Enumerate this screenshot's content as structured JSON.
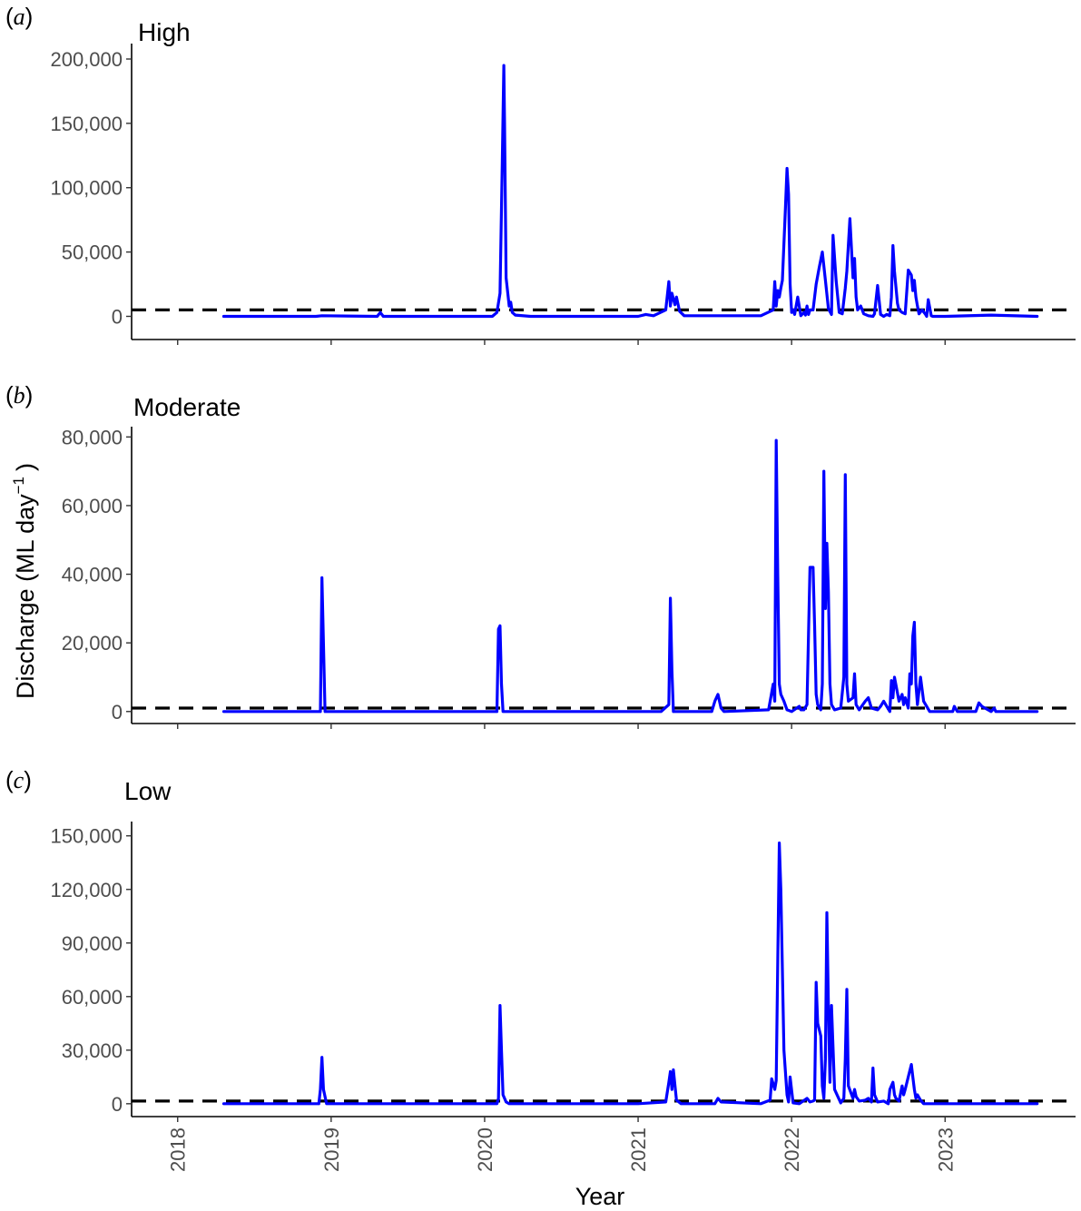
{
  "colors": {
    "series": "#0000ff",
    "threshold": "#000000"
  },
  "ylabel_main": "Discharge (ML day",
  "ylabel_sup": "−1",
  "ylabel_close": ")",
  "xlabel": "Year",
  "x_ticks": [
    "2018",
    "2019",
    "2020",
    "2021",
    "2022",
    "2023"
  ],
  "chart_data": [
    {
      "type": "line",
      "panel_letter": "a",
      "title": "High",
      "xlabel": "",
      "ylabel": "Discharge (ML day−1)",
      "xlim": [
        2017.7,
        2023.85
      ],
      "ylim": [
        -18000,
        212000
      ],
      "y_ticks": [
        0,
        50000,
        100000,
        150000,
        200000
      ],
      "y_tick_labels": [
        "0",
        "50,000",
        "100,000",
        "150,000",
        "200,000"
      ],
      "threshold": 5000,
      "x": [
        2018.3,
        2018.9,
        2018.94,
        2019.3,
        2019.32,
        2019.34,
        2019.9,
        2020.05,
        2020.08,
        2020.1,
        2020.115,
        2020.125,
        2020.13,
        2020.14,
        2020.16,
        2020.17,
        2020.18,
        2020.2,
        2020.3,
        2021.0,
        2021.05,
        2021.1,
        2021.18,
        2021.2,
        2021.21,
        2021.22,
        2021.24,
        2021.25,
        2021.27,
        2021.3,
        2021.8,
        2021.88,
        2021.89,
        2021.9,
        2021.91,
        2021.92,
        2021.93,
        2021.94,
        2021.96,
        2021.97,
        2021.98,
        2021.99,
        2022.0,
        2022.01,
        2022.02,
        2022.04,
        2022.06,
        2022.08,
        2022.09,
        2022.1,
        2022.11,
        2022.12,
        2022.14,
        2022.16,
        2022.18,
        2022.2,
        2022.22,
        2022.24,
        2022.26,
        2022.27,
        2022.29,
        2022.31,
        2022.33,
        2022.35,
        2022.36,
        2022.38,
        2022.4,
        2022.41,
        2022.42,
        2022.43,
        2022.45,
        2022.47,
        2022.5,
        2022.53,
        2022.54,
        2022.56,
        2022.58,
        2022.6,
        2022.62,
        2022.64,
        2022.65,
        2022.66,
        2022.67,
        2022.69,
        2022.7,
        2022.72,
        2022.74,
        2022.76,
        2022.78,
        2022.79,
        2022.8,
        2022.81,
        2022.82,
        2022.83,
        2022.85,
        2022.87,
        2022.88,
        2022.89,
        2022.91,
        2022.92,
        2023.0,
        2023.3,
        2023.6
      ],
      "values": [
        0,
        0,
        500,
        0,
        3000,
        0,
        0,
        0,
        3000,
        18000,
        120000,
        195000,
        150000,
        30000,
        8000,
        11000,
        3000,
        1000,
        0,
        0,
        1500,
        500,
        5000,
        27000,
        8000,
        18000,
        9000,
        15000,
        4000,
        500,
        500,
        5000,
        27000,
        8000,
        20000,
        15000,
        22000,
        28000,
        85000,
        115000,
        95000,
        25000,
        3000,
        5000,
        1500,
        15000,
        500,
        3000,
        1000,
        8000,
        1500,
        5000,
        5000,
        25000,
        38000,
        50000,
        28000,
        6000,
        1500,
        63000,
        28000,
        3000,
        2000,
        22000,
        35000,
        76000,
        30000,
        45000,
        15000,
        5000,
        8000,
        2000,
        500,
        0,
        2000,
        24000,
        1500,
        0,
        1500,
        500,
        15000,
        55000,
        35000,
        10000,
        5000,
        3000,
        2000,
        36000,
        32000,
        20000,
        28000,
        15000,
        8000,
        2000,
        5000,
        2000,
        0,
        13000,
        500,
        0,
        0,
        1000,
        0
      ]
    },
    {
      "type": "line",
      "panel_letter": "b",
      "title": "Moderate",
      "xlabel": "",
      "ylabel": "Discharge (ML day−1)",
      "xlim": [
        2017.7,
        2023.85
      ],
      "ylim": [
        -3500,
        83000
      ],
      "y_ticks": [
        0,
        20000,
        40000,
        60000,
        80000
      ],
      "y_tick_labels": [
        "0",
        "20,000",
        "40,000",
        "60,000",
        "80,000"
      ],
      "threshold": 1000,
      "x": [
        2018.3,
        2018.93,
        2018.94,
        2018.96,
        2018.97,
        2018.99,
        2019.0,
        2020.0,
        2020.08,
        2020.09,
        2020.1,
        2020.11,
        2020.12,
        2020.15,
        2021.0,
        2021.15,
        2021.2,
        2021.21,
        2021.22,
        2021.23,
        2021.25,
        2021.48,
        2021.5,
        2021.52,
        2021.54,
        2021.56,
        2021.85,
        2021.88,
        2021.89,
        2021.9,
        2021.91,
        2021.92,
        2021.93,
        2021.95,
        2021.97,
        2022.0,
        2022.05,
        2022.06,
        2022.08,
        2022.1,
        2022.12,
        2022.14,
        2022.15,
        2022.16,
        2022.17,
        2022.19,
        2022.2,
        2022.21,
        2022.22,
        2022.23,
        2022.24,
        2022.25,
        2022.26,
        2022.28,
        2022.32,
        2022.34,
        2022.35,
        2022.36,
        2022.37,
        2022.4,
        2022.41,
        2022.42,
        2022.44,
        2022.48,
        2022.5,
        2022.52,
        2022.56,
        2022.58,
        2022.6,
        2022.64,
        2022.65,
        2022.66,
        2022.67,
        2022.7,
        2022.72,
        2022.73,
        2022.74,
        2022.76,
        2022.77,
        2022.78,
        2022.79,
        2022.8,
        2022.81,
        2022.82,
        2022.84,
        2022.86,
        2022.9,
        2023.05,
        2023.06,
        2023.08,
        2023.2,
        2023.22,
        2023.24,
        2023.26,
        2023.3,
        2023.32,
        2023.33,
        2023.6
      ],
      "values": [
        0,
        0,
        39000,
        0,
        0,
        0,
        0,
        0,
        0,
        24000,
        25000,
        8000,
        0,
        0,
        0,
        0,
        2000,
        33000,
        12000,
        0,
        0,
        0,
        3000,
        5000,
        1000,
        0,
        500,
        8000,
        3000,
        79000,
        40000,
        8000,
        5000,
        3000,
        500,
        0,
        1500,
        500,
        500,
        2000,
        42000,
        42000,
        25000,
        5000,
        2000,
        500,
        8000,
        70000,
        30000,
        49000,
        35000,
        8000,
        2000,
        500,
        1000,
        10000,
        69000,
        8000,
        3000,
        4000,
        11000,
        2000,
        500,
        3000,
        4000,
        1000,
        500,
        1500,
        3000,
        0,
        9000,
        4000,
        10000,
        3000,
        5000,
        2000,
        4000,
        1000,
        11000,
        8000,
        22000,
        26000,
        8000,
        2000,
        10000,
        3000,
        0,
        0,
        1500,
        0,
        0,
        2500,
        1500,
        1000,
        0,
        1000,
        0,
        0
      ]
    },
    {
      "type": "line",
      "panel_letter": "c",
      "title": "Low",
      "xlabel": "Year",
      "ylabel": "Discharge (ML day−1)",
      "xlim": [
        2017.7,
        2023.85
      ],
      "ylim": [
        -7200,
        158000
      ],
      "y_ticks": [
        0,
        30000,
        60000,
        90000,
        120000,
        150000
      ],
      "y_tick_labels": [
        "0",
        "30,000",
        "60,000",
        "90,000",
        "120,000",
        "150,000"
      ],
      "threshold": 1500,
      "x": [
        2018.3,
        2018.92,
        2018.93,
        2018.94,
        2018.95,
        2018.97,
        2019.0,
        2020.0,
        2020.08,
        2020.09,
        2020.1,
        2020.11,
        2020.12,
        2020.14,
        2020.16,
        2021.0,
        2021.18,
        2021.2,
        2021.21,
        2021.22,
        2021.23,
        2021.25,
        2021.28,
        2021.5,
        2021.52,
        2021.54,
        2021.8,
        2021.86,
        2021.87,
        2021.89,
        2021.9,
        2021.91,
        2021.92,
        2021.93,
        2021.95,
        2021.97,
        2021.98,
        2021.99,
        2022.01,
        2022.05,
        2022.1,
        2022.12,
        2022.14,
        2022.15,
        2022.16,
        2022.17,
        2022.19,
        2022.2,
        2022.21,
        2022.22,
        2022.23,
        2022.24,
        2022.25,
        2022.26,
        2022.28,
        2022.32,
        2022.34,
        2022.35,
        2022.36,
        2022.37,
        2022.4,
        2022.41,
        2022.42,
        2022.44,
        2022.48,
        2022.5,
        2022.52,
        2022.53,
        2022.54,
        2022.56,
        2022.6,
        2022.63,
        2022.64,
        2022.66,
        2022.67,
        2022.68,
        2022.7,
        2022.72,
        2022.73,
        2022.74,
        2022.76,
        2022.78,
        2022.79,
        2022.8,
        2022.81,
        2022.82,
        2022.84,
        2022.86,
        2022.9,
        2023.0,
        2023.3,
        2023.6
      ],
      "values": [
        0,
        0,
        8000,
        26000,
        8000,
        0,
        0,
        0,
        0,
        3000,
        55000,
        30000,
        5000,
        1000,
        0,
        0,
        1000,
        12000,
        18000,
        8000,
        19000,
        2000,
        0,
        0,
        3000,
        1000,
        0,
        2000,
        14000,
        8000,
        13000,
        80000,
        146000,
        120000,
        30000,
        5000,
        1000,
        15000,
        500,
        0,
        3000,
        1000,
        1500,
        2000,
        68000,
        45000,
        38000,
        10000,
        3000,
        25000,
        107000,
        55000,
        12000,
        55000,
        8000,
        500,
        3000,
        25000,
        64000,
        10000,
        3000,
        8000,
        4000,
        1500,
        2000,
        3000,
        1000,
        20000,
        5000,
        1000,
        1500,
        0,
        8000,
        12000,
        5000,
        3000,
        1500,
        10000,
        5000,
        8000,
        15000,
        22000,
        15000,
        8000,
        3000,
        5000,
        2000,
        0,
        0,
        0,
        0,
        0
      ]
    }
  ]
}
